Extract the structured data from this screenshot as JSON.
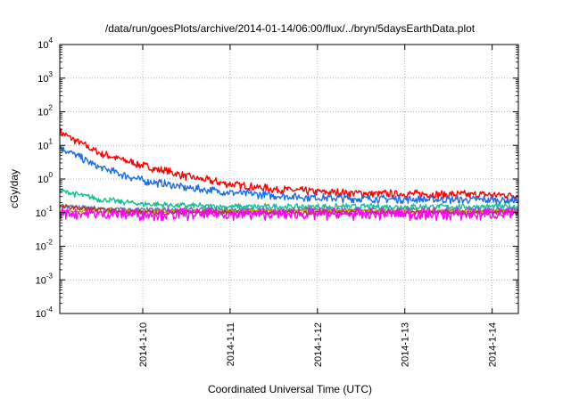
{
  "chart_data": {
    "type": "line",
    "title": "/data/run/goesPlots/archive/2014-01-14/06:00/flux/../bryn/5daysEarthData.plot",
    "xlabel": "Coordinated Universal Time (UTC)",
    "ylabel": "cGy/day",
    "y_scale": "log",
    "ylim": [
      0.0001,
      10000
    ],
    "y_ticks": [
      {
        "value": 0.0001,
        "base": "10",
        "exp": "-4"
      },
      {
        "value": 0.001,
        "base": "10",
        "exp": "-3"
      },
      {
        "value": 0.01,
        "base": "10",
        "exp": "-2"
      },
      {
        "value": 0.1,
        "base": "10",
        "exp": "-1"
      },
      {
        "value": 1,
        "base": "10",
        "exp": "0"
      },
      {
        "value": 10,
        "base": "10",
        "exp": "1"
      },
      {
        "value": 100,
        "base": "10",
        "exp": "2"
      },
      {
        "value": 1000,
        "base": "10",
        "exp": "3"
      },
      {
        "value": 10000,
        "base": "10",
        "exp": "4"
      }
    ],
    "x_range_days": [
      9.05,
      14.3
    ],
    "x_ticks": [
      {
        "day": 10,
        "label": "2014-1-10"
      },
      {
        "day": 11,
        "label": "2014-1-11"
      },
      {
        "day": 12,
        "label": "2014-1-12"
      },
      {
        "day": 13,
        "label": "2014-1-13"
      },
      {
        "day": 14,
        "label": "2014-1-14"
      }
    ],
    "grid": true,
    "legend": "none",
    "series": [
      {
        "color": "#ff0000",
        "x": [
          9.05,
          9.5,
          10.0,
          10.5,
          11.0,
          11.5,
          12.0,
          12.5,
          13.0,
          13.5,
          14.0,
          14.3
        ],
        "values": [
          25,
          6,
          2.5,
          1.2,
          0.7,
          0.5,
          0.42,
          0.38,
          0.36,
          0.35,
          0.34,
          0.33
        ],
        "noise": 0.08
      },
      {
        "color": "#1a6ee8",
        "x": [
          9.05,
          9.5,
          10.0,
          10.5,
          11.0,
          11.5,
          12.0,
          12.5,
          13.0,
          13.5,
          14.0,
          14.3
        ],
        "values": [
          9,
          2.2,
          0.9,
          0.55,
          0.4,
          0.32,
          0.28,
          0.26,
          0.25,
          0.24,
          0.24,
          0.23
        ],
        "noise": 0.08
      },
      {
        "color": "#1abf94",
        "x": [
          9.05,
          9.5,
          10.0,
          10.5,
          11.0,
          11.5,
          12.0,
          12.5,
          13.0,
          13.5,
          14.0,
          14.3
        ],
        "values": [
          0.45,
          0.25,
          0.18,
          0.16,
          0.15,
          0.15,
          0.15,
          0.15,
          0.15,
          0.15,
          0.15,
          0.15
        ],
        "noise": 0.06
      },
      {
        "color": "#6a7a9c",
        "x": [
          9.05,
          9.5,
          10.0,
          10.5,
          11.0,
          11.5,
          12.0,
          12.5,
          13.0,
          13.5,
          14.0,
          14.3
        ],
        "values": [
          0.16,
          0.13,
          0.12,
          0.12,
          0.12,
          0.12,
          0.12,
          0.12,
          0.12,
          0.12,
          0.12,
          0.12
        ],
        "noise": 0.05
      },
      {
        "color": "#c8a400",
        "x": [
          9.05,
          9.5,
          10.0,
          10.5,
          11.0,
          11.5,
          12.0,
          12.5,
          13.0,
          13.5,
          14.0,
          14.3
        ],
        "values": [
          0.11,
          0.11,
          0.11,
          0.11,
          0.11,
          0.11,
          0.11,
          0.11,
          0.11,
          0.11,
          0.11,
          0.11
        ],
        "noise": 0.03
      },
      {
        "color": "#a63a3a",
        "x": [
          9.05,
          9.5,
          10.0,
          10.5,
          11.0,
          11.5,
          12.0,
          12.5,
          13.0,
          13.5,
          14.0,
          14.3
        ],
        "values": [
          0.15,
          0.12,
          0.1,
          0.1,
          0.1,
          0.1,
          0.1,
          0.1,
          0.1,
          0.1,
          0.1,
          0.1
        ],
        "noise": 0.05
      },
      {
        "color": "#ff00ff",
        "x": [
          9.05,
          9.5,
          10.0,
          10.5,
          11.0,
          11.5,
          12.0,
          12.5,
          13.0,
          13.5,
          14.0,
          14.3
        ],
        "values": [
          0.1,
          0.09,
          0.09,
          0.09,
          0.09,
          0.09,
          0.09,
          0.09,
          0.09,
          0.09,
          0.09,
          0.09
        ],
        "noise": 0.12
      }
    ]
  }
}
